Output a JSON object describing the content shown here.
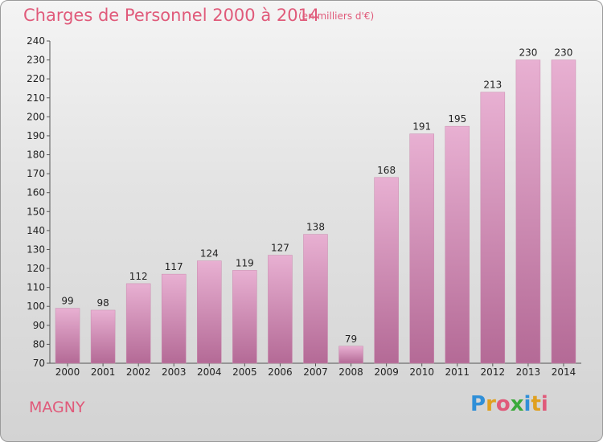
{
  "title": "Charges de Personnel 2000 à 2014",
  "subtitle": "(en milliers d'€)",
  "commune": "MAGNY",
  "logo": {
    "letters": [
      "P",
      "r",
      "o",
      "x",
      "i",
      "t",
      "i"
    ],
    "colors": [
      "#2f8fd8",
      "#e0a020",
      "#e05a7a",
      "#3aaa3a",
      "#2f8fd8",
      "#e0a020",
      "#e05a7a"
    ]
  },
  "chart_data": {
    "type": "bar",
    "categories": [
      "2000",
      "2001",
      "2002",
      "2003",
      "2004",
      "2005",
      "2006",
      "2007",
      "2008",
      "2009",
      "2010",
      "2011",
      "2012",
      "2013",
      "2014"
    ],
    "values": [
      99,
      98,
      112,
      117,
      124,
      119,
      127,
      138,
      79,
      168,
      191,
      195,
      213,
      230,
      230
    ],
    "ylim": [
      70,
      240
    ],
    "yticks": [
      70,
      80,
      90,
      100,
      110,
      120,
      130,
      140,
      150,
      160,
      170,
      180,
      190,
      200,
      210,
      220,
      230,
      240
    ],
    "grid": false,
    "legend": "none",
    "bar_color": "#d98bb8",
    "bar_color_dark": "#b46a96"
  }
}
